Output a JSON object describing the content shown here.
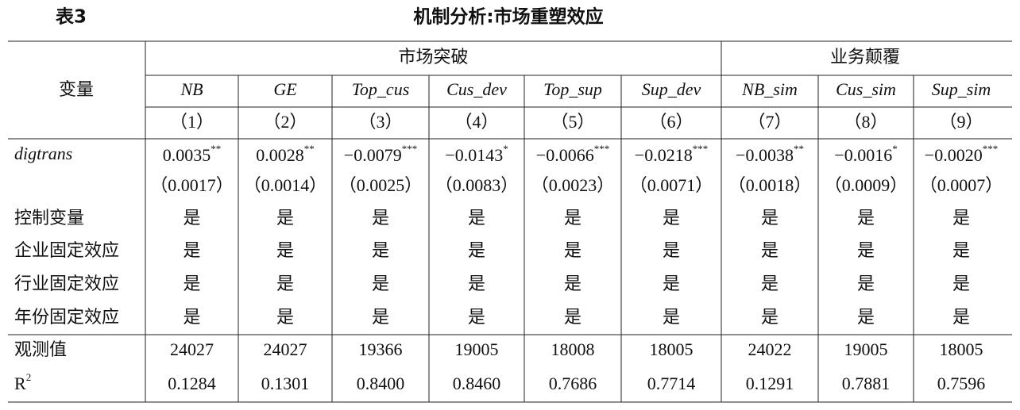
{
  "header": {
    "table_no": "表3",
    "title": "机制分析:市场重塑效应"
  },
  "table": {
    "stub_header": "变量",
    "groups": [
      {
        "label": "市场突破",
        "columns": [
          {
            "name": "NB",
            "number": "（1）"
          },
          {
            "name": "GE",
            "number": "（2）"
          },
          {
            "name": "Top_cus",
            "number": "（3）"
          },
          {
            "name": "Cus_dev",
            "number": "（4）"
          },
          {
            "name": "Top_sup",
            "number": "（5）"
          },
          {
            "name": "Sup_dev",
            "number": "（6）"
          }
        ]
      },
      {
        "label": "业务颠覆",
        "columns": [
          {
            "name": "NB_sim",
            "number": "（7）"
          },
          {
            "name": "Cus_sim",
            "number": "（8）"
          },
          {
            "name": "Sup_sim",
            "number": "（9）"
          }
        ]
      }
    ],
    "key_row": {
      "label": "digtrans",
      "coef": [
        {
          "value": "0.0035",
          "stars": "**"
        },
        {
          "value": "0.0028",
          "stars": "**"
        },
        {
          "value": "−0.0079",
          "stars": "***"
        },
        {
          "value": "−0.0143",
          "stars": "*"
        },
        {
          "value": "−0.0066",
          "stars": "***"
        },
        {
          "value": "−0.0218",
          "stars": "***"
        },
        {
          "value": "−0.0038",
          "stars": "**"
        },
        {
          "value": "−0.0016",
          "stars": "*"
        },
        {
          "value": "−0.0020",
          "stars": "***"
        }
      ],
      "se": [
        "（0.0017）",
        "（0.0014）",
        "（0.0025）",
        "（0.0083）",
        "（0.0023）",
        "（0.0071）",
        "（0.0018）",
        "（0.0009）",
        "（0.0007）"
      ]
    },
    "control_rows": [
      {
        "label": "控制变量",
        "cells": [
          "是",
          "是",
          "是",
          "是",
          "是",
          "是",
          "是",
          "是",
          "是"
        ]
      },
      {
        "label": "企业固定效应",
        "cells": [
          "是",
          "是",
          "是",
          "是",
          "是",
          "是",
          "是",
          "是",
          "是"
        ]
      },
      {
        "label": "行业固定效应",
        "cells": [
          "是",
          "是",
          "是",
          "是",
          "是",
          "是",
          "是",
          "是",
          "是"
        ]
      },
      {
        "label": "年份固定效应",
        "cells": [
          "是",
          "是",
          "是",
          "是",
          "是",
          "是",
          "是",
          "是",
          "是"
        ]
      }
    ],
    "stat_rows": [
      {
        "label": "观测值",
        "cells": [
          "24027",
          "24027",
          "19366",
          "19005",
          "18008",
          "18005",
          "24022",
          "19005",
          "18005"
        ]
      },
      {
        "label": "R",
        "sup": "2",
        "cells": [
          "0.1284",
          "0.1301",
          "0.8400",
          "0.8460",
          "0.7686",
          "0.7714",
          "0.1291",
          "0.7881",
          "0.7596"
        ]
      }
    ]
  }
}
